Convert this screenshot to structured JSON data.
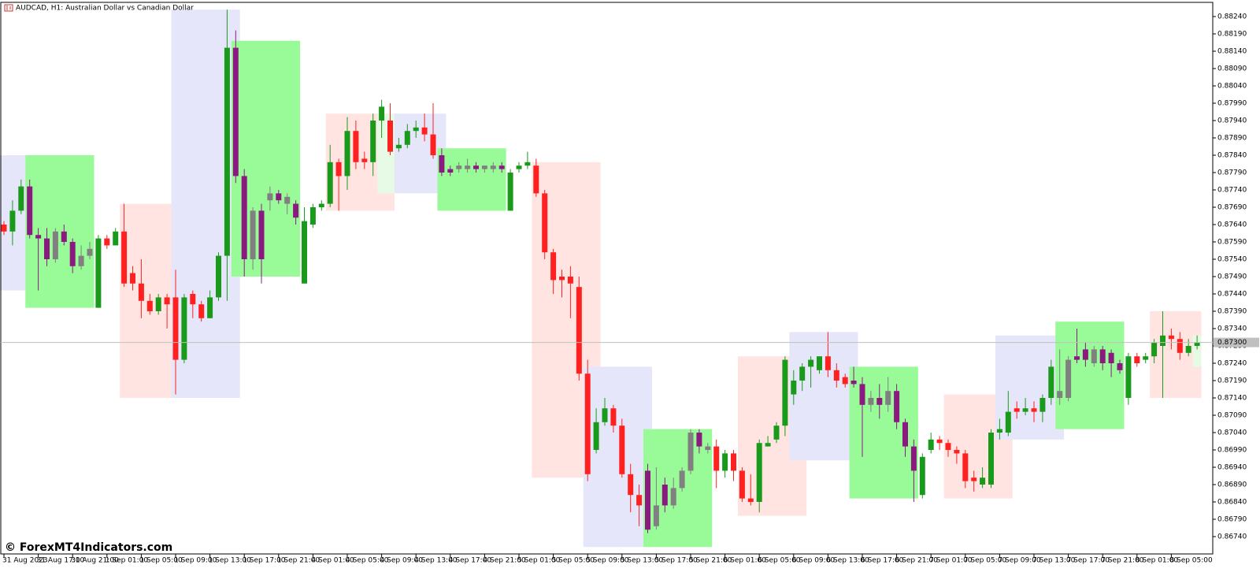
{
  "chart_data": {
    "type": "candlestick",
    "title": "AUDCAD, H1:  Australian Dollar vs Canadian Dollar",
    "watermark": "© ForexMT4Indicators.com",
    "categories": [
      "31 Aug 2023",
      null,
      null,
      null,
      "31 Aug 17:00",
      null,
      null,
      null,
      "31 Aug 21:00",
      null,
      null,
      null,
      "1 Sep 01:00",
      null,
      null,
      null,
      "1 Sep 05:00",
      null,
      null,
      null,
      "1 Sep 09:00",
      null,
      null,
      null,
      "1 Sep 13:00",
      null,
      null,
      null,
      "1 Sep 17:00",
      null,
      null,
      null,
      "1 Sep 21:00",
      null,
      null,
      null,
      "4 Sep 01:00",
      null,
      null,
      null,
      "4 Sep 05:00",
      null,
      null,
      null,
      "4 Sep 09:00",
      null,
      null,
      null,
      "4 Sep 13:00",
      null,
      null,
      null,
      "4 Sep 17:00",
      null,
      null,
      null,
      "4 Sep 21:00",
      null,
      null,
      null,
      "5 Sep 01:00",
      null,
      null,
      null,
      "5 Sep 05:00",
      null,
      null,
      null,
      "5 Sep 09:00",
      null,
      null,
      null,
      "5 Sep 13:00",
      null,
      null,
      null,
      "5 Sep 17:00",
      null,
      null,
      null,
      "5 Sep 21:00",
      null,
      null,
      null,
      "6 Sep 01:00",
      null,
      null,
      null,
      "6 Sep 05:00",
      null,
      null,
      null,
      "6 Sep 09:00",
      null,
      null,
      null,
      "6 Sep 13:00",
      null,
      null,
      null,
      "6 Sep 17:00",
      null,
      null,
      null,
      "6 Sep 21:00",
      null,
      null,
      null,
      "7 Sep 01:00",
      null,
      null,
      null,
      "7 Sep 05:00",
      null,
      null,
      null,
      "7 Sep 09:00",
      null,
      null,
      null,
      "7 Sep 13:00",
      null,
      null,
      null,
      "7 Sep 17:00",
      null,
      null,
      null,
      "7 Sep 21:00",
      null,
      null,
      null,
      "8 Sep 01:00",
      null,
      null,
      null,
      "8 Sep 05:00",
      null,
      null,
      null
    ],
    "open": [
      0.8764,
      0.8762,
      0.8768,
      0.8775,
      0.8761,
      0.876,
      0.8754,
      0.8762,
      0.8759,
      0.8752,
      0.8755,
      0.874,
      0.876,
      0.8758,
      0.8762,
      0.875,
      0.8747,
      0.8742,
      0.8739,
      0.8743,
      0.8743,
      0.8725,
      0.8744,
      0.8741,
      0.8737,
      0.8743,
      0.8755,
      0.8815,
      0.8778,
      0.8754,
      0.8768,
      0.8771,
      0.8773,
      0.877,
      0.877,
      0.8747,
      0.8764,
      0.8769,
      0.877,
      0.8782,
      0.8778,
      0.8791,
      0.8783,
      0.8782,
      0.8794,
      0.8794,
      0.8786,
      0.8787,
      0.8791,
      0.8792,
      0.879,
      0.8784,
      0.878,
      0.878,
      0.878,
      0.8781,
      0.878,
      0.878,
      0.8781,
      0.8768,
      0.878,
      0.8781,
      0.8781,
      0.8773,
      0.8756,
      0.8749,
      0.8749,
      0.8746,
      0.8721,
      0.8699,
      0.8707,
      0.8711,
      0.8706,
      0.8692,
      0.8686,
      0.8693,
      0.8677,
      0.8689,
      0.8683,
      0.8688,
      0.8693,
      0.8704,
      0.8699,
      0.87,
      0.8693,
      0.8698,
      0.8693,
      0.8685,
      0.8684,
      0.87,
      0.8702,
      0.8706,
      0.8715,
      0.8719,
      0.8723,
      0.8722,
      0.8726,
      0.8722,
      0.872,
      0.8719,
      0.8718,
      0.8712,
      0.8714,
      0.8712,
      0.8716,
      0.8707,
      0.87,
      0.8686,
      0.8699,
      0.8702,
      0.8701,
      0.8699,
      0.8698,
      0.8691,
      0.8689,
      0.8689,
      0.8704,
      0.8704,
      0.8711,
      0.871,
      0.8711,
      0.871,
      0.8714,
      0.8714,
      0.8714,
      0.8726,
      0.8728,
      0.8724,
      0.8728,
      0.8727,
      0.8724,
      0.8714,
      0.8726,
      0.8725,
      0.8726,
      0.8729,
      0.8732,
      0.8731,
      0.8727,
      0.8729
    ],
    "high": [
      0.8765,
      0.8771,
      0.8777,
      0.8777,
      0.8763,
      0.8763,
      0.8763,
      0.8764,
      0.876,
      0.8758,
      0.8759,
      0.8761,
      0.8761,
      0.8763,
      0.877,
      0.8752,
      0.8754,
      0.8744,
      0.8744,
      0.8744,
      0.8751,
      0.8744,
      0.8745,
      0.8742,
      0.8745,
      0.8756,
      0.8826,
      0.882,
      0.878,
      0.8769,
      0.877,
      0.8775,
      0.8774,
      0.8773,
      0.8771,
      0.8769,
      0.877,
      0.8771,
      0.8787,
      0.8783,
      0.8795,
      0.8794,
      0.8785,
      0.8796,
      0.88,
      0.8799,
      0.8789,
      0.8793,
      0.8794,
      0.8796,
      0.8799,
      0.8786,
      0.8781,
      0.8782,
      0.8783,
      0.8782,
      0.8781,
      0.8782,
      0.8782,
      0.878,
      0.8782,
      0.8785,
      0.8783,
      0.8774,
      0.8757,
      0.8751,
      0.8752,
      0.8749,
      0.8725,
      0.8711,
      0.8714,
      0.8712,
      0.8708,
      0.8695,
      0.8689,
      0.8695,
      0.8694,
      0.8691,
      0.8691,
      0.8694,
      0.8705,
      0.8705,
      0.8701,
      0.8702,
      0.8699,
      0.8699,
      0.8694,
      0.8692,
      0.8702,
      0.8703,
      0.8707,
      0.8726,
      0.8722,
      0.8724,
      0.8726,
      0.8726,
      0.8733,
      0.8724,
      0.8721,
      0.8723,
      0.872,
      0.8716,
      0.8718,
      0.872,
      0.8718,
      0.8708,
      0.8702,
      0.8698,
      0.8704,
      0.8703,
      0.8702,
      0.87,
      0.8699,
      0.8693,
      0.8694,
      0.8705,
      0.8708,
      0.8716,
      0.8713,
      0.8714,
      0.8713,
      0.8715,
      0.8725,
      0.8728,
      0.8726,
      0.8734,
      0.873,
      0.8729,
      0.8729,
      0.8728,
      0.8725,
      0.8727,
      0.8727,
      0.8727,
      0.8731,
      0.8739,
      0.8734,
      0.8733,
      0.8731,
      0.8732
    ],
    "low": [
      0.8761,
      0.8758,
      0.8767,
      0.876,
      0.8745,
      0.8752,
      0.8753,
      0.8758,
      0.875,
      0.8751,
      0.8754,
      0.874,
      0.8757,
      0.8758,
      0.8746,
      0.8745,
      0.8737,
      0.8738,
      0.8738,
      0.8734,
      0.8715,
      0.8724,
      0.8737,
      0.8736,
      0.8737,
      0.8742,
      0.8742,
      0.8776,
      0.8749,
      0.8751,
      0.8747,
      0.8768,
      0.877,
      0.8767,
      0.8764,
      0.8747,
      0.8763,
      0.8768,
      0.8769,
      0.8768,
      0.8774,
      0.878,
      0.878,
      0.8778,
      0.8789,
      0.8784,
      0.8785,
      0.8786,
      0.8789,
      0.8788,
      0.8783,
      0.8778,
      0.8778,
      0.8779,
      0.8779,
      0.8779,
      0.8779,
      0.8779,
      0.8779,
      0.8768,
      0.8779,
      0.878,
      0.8772,
      0.8754,
      0.8744,
      0.8743,
      0.8737,
      0.8719,
      0.869,
      0.8698,
      0.8706,
      0.8704,
      0.8691,
      0.8681,
      0.8677,
      0.8675,
      0.8676,
      0.8681,
      0.8682,
      0.8687,
      0.8692,
      0.8698,
      0.8698,
      0.8688,
      0.8691,
      0.869,
      0.8684,
      0.8683,
      0.8681,
      0.87,
      0.8701,
      0.8703,
      0.8712,
      0.8716,
      0.8717,
      0.8721,
      0.872,
      0.8717,
      0.8717,
      0.8717,
      0.8697,
      0.871,
      0.8708,
      0.871,
      0.8705,
      0.8697,
      0.8684,
      0.8685,
      0.8698,
      0.8699,
      0.8697,
      0.8695,
      0.8688,
      0.8687,
      0.8688,
      0.8688,
      0.8702,
      0.8703,
      0.8708,
      0.8709,
      0.8707,
      0.8707,
      0.8712,
      0.8712,
      0.8713,
      0.8724,
      0.8723,
      0.8723,
      0.8722,
      0.872,
      0.8721,
      0.8712,
      0.8723,
      0.8724,
      0.8724,
      0.8714,
      0.8728,
      0.8725,
      0.8726,
      0.8728
    ],
    "close": [
      0.8762,
      0.8768,
      0.8775,
      0.8761,
      0.876,
      0.8754,
      0.8762,
      0.8759,
      0.8752,
      0.8755,
      0.8757,
      0.876,
      0.8758,
      0.8762,
      0.8747,
      0.8747,
      0.8742,
      0.8739,
      0.8743,
      0.8741,
      0.8725,
      0.8743,
      0.8741,
      0.8737,
      0.8743,
      0.8755,
      0.8815,
      0.8778,
      0.8754,
      0.8768,
      0.8754,
      0.8773,
      0.8771,
      0.8772,
      0.8766,
      0.8765,
      0.8769,
      0.877,
      0.8782,
      0.8778,
      0.8791,
      0.8782,
      0.8782,
      0.8794,
      0.8798,
      0.8785,
      0.8787,
      0.8791,
      0.8792,
      0.879,
      0.8784,
      0.8779,
      0.8779,
      0.8781,
      0.8781,
      0.878,
      0.8781,
      0.8781,
      0.878,
      0.8779,
      0.8781,
      0.8782,
      0.8773,
      0.8756,
      0.8748,
      0.8748,
      0.8747,
      0.8721,
      0.8692,
      0.8707,
      0.8711,
      0.8706,
      0.8692,
      0.8686,
      0.8683,
      0.8676,
      0.8683,
      0.8683,
      0.8688,
      0.8693,
      0.8704,
      0.87,
      0.87,
      0.8693,
      0.8698,
      0.8693,
      0.8685,
      0.8684,
      0.8701,
      0.8701,
      0.8706,
      0.8725,
      0.8719,
      0.8723,
      0.8725,
      0.8726,
      0.8722,
      0.8719,
      0.8718,
      0.8718,
      0.8712,
      0.8714,
      0.8712,
      0.8716,
      0.8707,
      0.87,
      0.8693,
      0.8697,
      0.8702,
      0.8701,
      0.8699,
      0.8698,
      0.869,
      0.869,
      0.8691,
      0.8704,
      0.8705,
      0.871,
      0.871,
      0.8711,
      0.871,
      0.8714,
      0.8723,
      0.8716,
      0.8725,
      0.8725,
      0.8725,
      0.8728,
      0.8724,
      0.8724,
      0.8722,
      0.8726,
      0.8724,
      0.8726,
      0.873,
      0.8732,
      0.8731,
      0.8727,
      0.8729,
      0.873
    ],
    "candle_colors": {
      "up": "#1a9a1a",
      "down": "#ff2020",
      "muted_up": "#808080",
      "muted_down": "#8b1a80"
    },
    "muted_zone_color": "#98fb98",
    "zones": [
      {
        "from": 0,
        "to": 3,
        "top": 0.8784,
        "bottom": 0.8745,
        "color": "#e6e6fa"
      },
      {
        "from": 3,
        "to": 10,
        "top": 0.8784,
        "bottom": 0.874,
        "color": "#98fb98"
      },
      {
        "from": 14,
        "to": 19,
        "top": 0.877,
        "bottom": 0.8714,
        "color": "#ffe4e1"
      },
      {
        "from": 20,
        "to": 21,
        "top": 0.877,
        "bottom": 0.8714,
        "color": "#e6fae6"
      },
      {
        "from": 20,
        "to": 27,
        "top": 0.8826,
        "bottom": 0.8714,
        "color": "#e6e6fa"
      },
      {
        "from": 27,
        "to": 34,
        "top": 0.8817,
        "bottom": 0.8749,
        "color": "#98fb98"
      },
      {
        "from": 38,
        "to": 45,
        "top": 0.8796,
        "bottom": 0.8768,
        "color": "#ffe4e1"
      },
      {
        "from": 44,
        "to": 45,
        "top": 0.8796,
        "bottom": 0.8773,
        "color": "#e6fae6"
      },
      {
        "from": 46,
        "to": 51,
        "top": 0.8796,
        "bottom": 0.8773,
        "color": "#e6e6fa"
      },
      {
        "from": 51,
        "to": 58,
        "top": 0.8786,
        "bottom": 0.8768,
        "color": "#98fb98"
      },
      {
        "from": 62,
        "to": 69,
        "top": 0.8782,
        "bottom": 0.8691,
        "color": "#ffe4e1"
      },
      {
        "from": 68,
        "to": 69,
        "top": 0.8723,
        "bottom": 0.8691,
        "color": "#e6fae6"
      },
      {
        "from": 68,
        "to": 75,
        "top": 0.8723,
        "bottom": 0.8671,
        "color": "#e6e6fa"
      },
      {
        "from": 75,
        "to": 82,
        "top": 0.8705,
        "bottom": 0.8671,
        "color": "#98fb98"
      },
      {
        "from": 86,
        "to": 93,
        "top": 0.8726,
        "bottom": 0.868,
        "color": "#ffe4e1"
      },
      {
        "from": 92,
        "to": 93,
        "top": 0.8726,
        "bottom": 0.8696,
        "color": "#e6fae6"
      },
      {
        "from": 92,
        "to": 99,
        "top": 0.8733,
        "bottom": 0.8696,
        "color": "#e6e6fa"
      },
      {
        "from": 99,
        "to": 106,
        "top": 0.8723,
        "bottom": 0.8685,
        "color": "#98fb98"
      },
      {
        "from": 110,
        "to": 117,
        "top": 0.8715,
        "bottom": 0.8685,
        "color": "#ffe4e1"
      },
      {
        "from": 116,
        "to": 117,
        "top": 0.8715,
        "bottom": 0.8702,
        "color": "#e6fae6"
      },
      {
        "from": 116,
        "to": 123,
        "top": 0.8732,
        "bottom": 0.8702,
        "color": "#e6e6fa"
      },
      {
        "from": 123,
        "to": 130,
        "top": 0.8736,
        "bottom": 0.8705,
        "color": "#98fb98"
      },
      {
        "from": 134,
        "to": 139,
        "top": 0.8739,
        "bottom": 0.8714,
        "color": "#ffe4e1"
      },
      {
        "from": 139,
        "to": 139,
        "top": 0.8732,
        "bottom": 0.8723,
        "color": "#e6fae6"
      }
    ],
    "current_price": {
      "value": 0.873,
      "label": "0.87300"
    },
    "ylim": [
      0.8669,
      0.8828
    ],
    "yticks": [
      {
        "value": 0.8824,
        "label": "0.88240"
      },
      {
        "value": 0.8819,
        "label": "0.88190"
      },
      {
        "value": 0.8814,
        "label": "0.88140"
      },
      {
        "value": 0.8809,
        "label": "0.88090"
      },
      {
        "value": 0.8804,
        "label": "0.88040"
      },
      {
        "value": 0.8799,
        "label": "0.87990"
      },
      {
        "value": 0.8794,
        "label": "0.87940"
      },
      {
        "value": 0.8789,
        "label": "0.87890"
      },
      {
        "value": 0.8784,
        "label": "0.87840"
      },
      {
        "value": 0.8779,
        "label": "0.87790"
      },
      {
        "value": 0.8774,
        "label": "0.87740"
      },
      {
        "value": 0.8769,
        "label": "0.87690"
      },
      {
        "value": 0.8764,
        "label": "0.87640"
      },
      {
        "value": 0.8759,
        "label": "0.87590"
      },
      {
        "value": 0.8754,
        "label": "0.87540"
      },
      {
        "value": 0.8749,
        "label": "0.87490"
      },
      {
        "value": 0.8744,
        "label": "0.87440"
      },
      {
        "value": 0.8739,
        "label": "0.87390"
      },
      {
        "value": 0.8734,
        "label": "0.87340"
      },
      {
        "value": 0.8729,
        "label": "0.87290"
      },
      {
        "value": 0.8724,
        "label": "0.87240"
      },
      {
        "value": 0.8719,
        "label": "0.87190"
      },
      {
        "value": 0.8714,
        "label": "0.87140"
      },
      {
        "value": 0.8709,
        "label": "0.87090"
      },
      {
        "value": 0.8704,
        "label": "0.87040"
      },
      {
        "value": 0.8699,
        "label": "0.86990"
      },
      {
        "value": 0.8694,
        "label": "0.86940"
      },
      {
        "value": 0.8689,
        "label": "0.86890"
      },
      {
        "value": 0.8684,
        "label": "0.86840"
      },
      {
        "value": 0.8679,
        "label": "0.86790"
      },
      {
        "value": 0.8674,
        "label": "0.86740"
      }
    ],
    "grid": false
  }
}
